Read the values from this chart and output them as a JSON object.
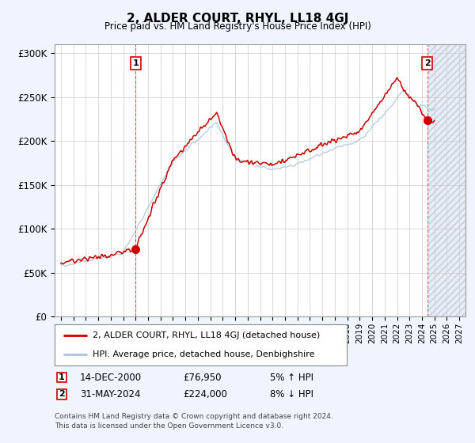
{
  "title": "2, ALDER COURT, RHYL, LL18 4GJ",
  "subtitle": "Price paid vs. HM Land Registry's House Price Index (HPI)",
  "ylabel_ticks": [
    "£0",
    "£50K",
    "£100K",
    "£150K",
    "£200K",
    "£250K",
    "£300K"
  ],
  "ytick_values": [
    0,
    50000,
    100000,
    150000,
    200000,
    250000,
    300000
  ],
  "ylim": [
    0,
    310000
  ],
  "xlim_start": 1994.5,
  "xlim_end": 2027.5,
  "hpi_color": "#aac4e0",
  "price_color": "#cc0000",
  "point1_year": 2001.0,
  "point1_value": 76950,
  "point1_label": "1",
  "point1_date": "14-DEC-2000",
  "point1_price": "£76,950",
  "point1_hpi": "5% ↑ HPI",
  "point2_year": 2024.42,
  "point2_value": 224000,
  "point2_label": "2",
  "point2_date": "31-MAY-2024",
  "point2_price": "£224,000",
  "point2_hpi": "8% ↓ HPI",
  "legend_line1": "2, ALDER COURT, RHYL, LL18 4GJ (detached house)",
  "legend_line2": "HPI: Average price, detached house, Denbighshire",
  "footnote": "Contains HM Land Registry data © Crown copyright and database right 2024.\nThis data is licensed under the Open Government Licence v3.0.",
  "background_color": "#f0f4ff",
  "plot_bg_color": "#ffffff",
  "grid_color": "#cccccc",
  "hatch_start": 2024.5
}
